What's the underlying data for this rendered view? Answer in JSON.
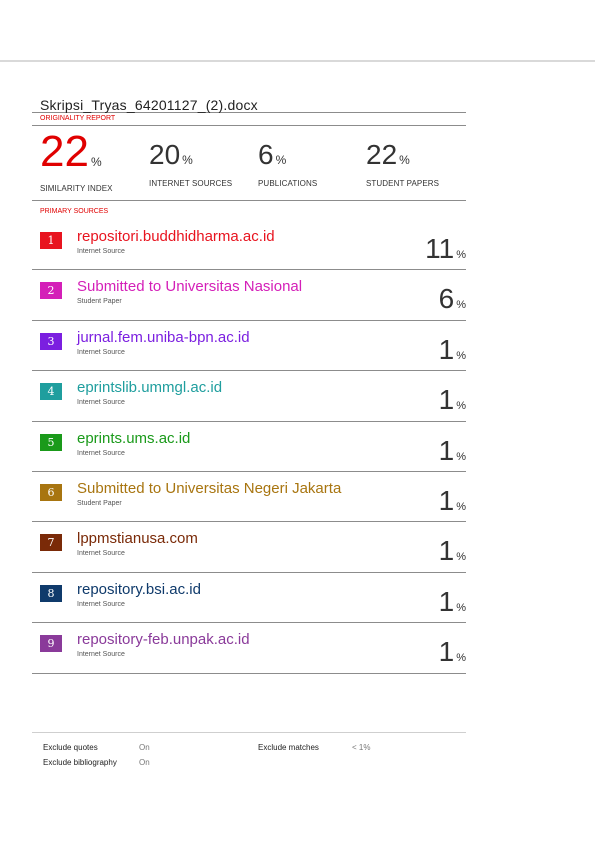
{
  "document": {
    "title": "Skripsi_Tryas_64201127_(2).docx",
    "originality_label": "ORIGINALITY REPORT",
    "primary_label": "PRIMARY SOURCES"
  },
  "summary": [
    {
      "value": "22",
      "unit": "%",
      "label": "SIMILARITY INDEX"
    },
    {
      "value": "20",
      "unit": "%",
      "label": "INTERNET SOURCES"
    },
    {
      "value": "6",
      "unit": "%",
      "label": "PUBLICATIONS"
    },
    {
      "value": "22",
      "unit": "%",
      "label": "STUDENT PAPERS"
    }
  ],
  "sources": [
    {
      "rank": "1",
      "name": "repositori.buddhidharma.ac.id",
      "type": "Internet Source",
      "percent": "11",
      "unit": "%",
      "color": "#e8141f"
    },
    {
      "rank": "2",
      "name": "Submitted to Universitas Nasional",
      "type": "Student Paper",
      "percent": "6",
      "unit": "%",
      "color": "#d41fb8"
    },
    {
      "rank": "3",
      "name": "jurnal.fem.uniba-bpn.ac.id",
      "type": "Internet Source",
      "percent": "1",
      "unit": "%",
      "color": "#7b1fe0"
    },
    {
      "rank": "4",
      "name": "eprintslib.ummgl.ac.id",
      "type": "Internet Source",
      "percent": "1",
      "unit": "%",
      "color": "#1f9e9e"
    },
    {
      "rank": "5",
      "name": "eprints.ums.ac.id",
      "type": "Internet Source",
      "percent": "1",
      "unit": "%",
      "color": "#1a9a1a"
    },
    {
      "rank": "6",
      "name": "Submitted to Universitas Negeri Jakarta",
      "type": "Student Paper",
      "percent": "1",
      "unit": "%",
      "color": "#a87510"
    },
    {
      "rank": "7",
      "name": "lppmstianusa.com",
      "type": "Internet Source",
      "percent": "1",
      "unit": "%",
      "color": "#7a2a08"
    },
    {
      "rank": "8",
      "name": "repository.bsi.ac.id",
      "type": "Internet Source",
      "percent": "1",
      "unit": "%",
      "color": "#0f3a6b"
    },
    {
      "rank": "9",
      "name": "repository-feb.unpak.ac.id",
      "type": "Internet Source",
      "percent": "1",
      "unit": "%",
      "color": "#8a3a9a"
    }
  ],
  "footer": {
    "exclude_quotes_label": "Exclude quotes",
    "exclude_quotes_value": "On",
    "exclude_bibliography_label": "Exclude bibliography",
    "exclude_bibliography_value": "On",
    "exclude_matches_label": "Exclude matches",
    "exclude_matches_value": "< 1%"
  }
}
